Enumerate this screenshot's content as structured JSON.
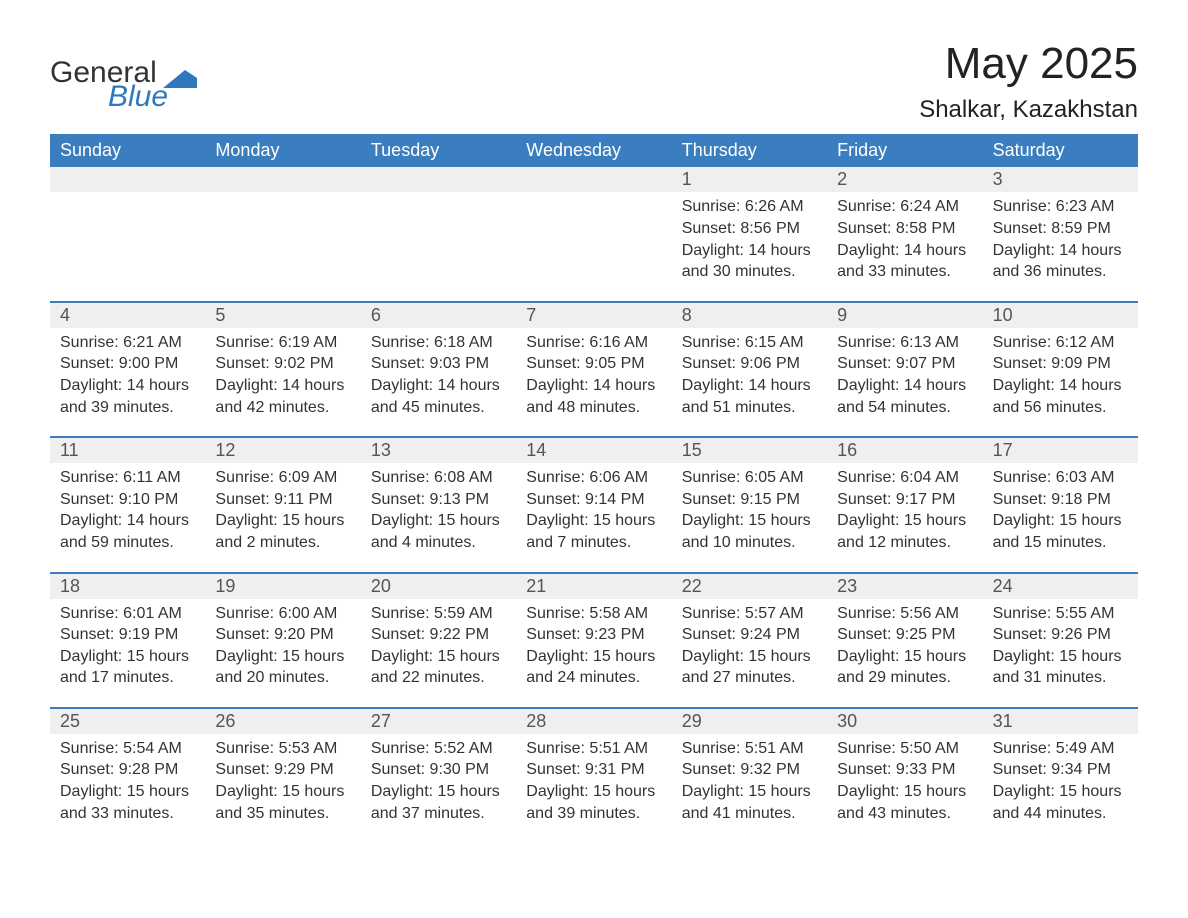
{
  "brand": {
    "name_part1": "General",
    "name_part2": "Blue",
    "text_color": "#333333",
    "accent_color": "#2f78bd"
  },
  "title": "May 2025",
  "location": "Shalkar, Kazakhstan",
  "colors": {
    "header_bg": "#3a7ebf",
    "header_text": "#ffffff",
    "daynum_bg": "#efefef",
    "daynum_text": "#555555",
    "divider": "#3a7ebf",
    "body_text": "#333333",
    "page_bg": "#ffffff"
  },
  "day_labels": [
    "Sunday",
    "Monday",
    "Tuesday",
    "Wednesday",
    "Thursday",
    "Friday",
    "Saturday"
  ],
  "weeks": [
    [
      null,
      null,
      null,
      null,
      {
        "n": "1",
        "sunrise": "6:26 AM",
        "sunset": "8:56 PM",
        "daylight": "14 hours and 30 minutes."
      },
      {
        "n": "2",
        "sunrise": "6:24 AM",
        "sunset": "8:58 PM",
        "daylight": "14 hours and 33 minutes."
      },
      {
        "n": "3",
        "sunrise": "6:23 AM",
        "sunset": "8:59 PM",
        "daylight": "14 hours and 36 minutes."
      }
    ],
    [
      {
        "n": "4",
        "sunrise": "6:21 AM",
        "sunset": "9:00 PM",
        "daylight": "14 hours and 39 minutes."
      },
      {
        "n": "5",
        "sunrise": "6:19 AM",
        "sunset": "9:02 PM",
        "daylight": "14 hours and 42 minutes."
      },
      {
        "n": "6",
        "sunrise": "6:18 AM",
        "sunset": "9:03 PM",
        "daylight": "14 hours and 45 minutes."
      },
      {
        "n": "7",
        "sunrise": "6:16 AM",
        "sunset": "9:05 PM",
        "daylight": "14 hours and 48 minutes."
      },
      {
        "n": "8",
        "sunrise": "6:15 AM",
        "sunset": "9:06 PM",
        "daylight": "14 hours and 51 minutes."
      },
      {
        "n": "9",
        "sunrise": "6:13 AM",
        "sunset": "9:07 PM",
        "daylight": "14 hours and 54 minutes."
      },
      {
        "n": "10",
        "sunrise": "6:12 AM",
        "sunset": "9:09 PM",
        "daylight": "14 hours and 56 minutes."
      }
    ],
    [
      {
        "n": "11",
        "sunrise": "6:11 AM",
        "sunset": "9:10 PM",
        "daylight": "14 hours and 59 minutes."
      },
      {
        "n": "12",
        "sunrise": "6:09 AM",
        "sunset": "9:11 PM",
        "daylight": "15 hours and 2 minutes."
      },
      {
        "n": "13",
        "sunrise": "6:08 AM",
        "sunset": "9:13 PM",
        "daylight": "15 hours and 4 minutes."
      },
      {
        "n": "14",
        "sunrise": "6:06 AM",
        "sunset": "9:14 PM",
        "daylight": "15 hours and 7 minutes."
      },
      {
        "n": "15",
        "sunrise": "6:05 AM",
        "sunset": "9:15 PM",
        "daylight": "15 hours and 10 minutes."
      },
      {
        "n": "16",
        "sunrise": "6:04 AM",
        "sunset": "9:17 PM",
        "daylight": "15 hours and 12 minutes."
      },
      {
        "n": "17",
        "sunrise": "6:03 AM",
        "sunset": "9:18 PM",
        "daylight": "15 hours and 15 minutes."
      }
    ],
    [
      {
        "n": "18",
        "sunrise": "6:01 AM",
        "sunset": "9:19 PM",
        "daylight": "15 hours and 17 minutes."
      },
      {
        "n": "19",
        "sunrise": "6:00 AM",
        "sunset": "9:20 PM",
        "daylight": "15 hours and 20 minutes."
      },
      {
        "n": "20",
        "sunrise": "5:59 AM",
        "sunset": "9:22 PM",
        "daylight": "15 hours and 22 minutes."
      },
      {
        "n": "21",
        "sunrise": "5:58 AM",
        "sunset": "9:23 PM",
        "daylight": "15 hours and 24 minutes."
      },
      {
        "n": "22",
        "sunrise": "5:57 AM",
        "sunset": "9:24 PM",
        "daylight": "15 hours and 27 minutes."
      },
      {
        "n": "23",
        "sunrise": "5:56 AM",
        "sunset": "9:25 PM",
        "daylight": "15 hours and 29 minutes."
      },
      {
        "n": "24",
        "sunrise": "5:55 AM",
        "sunset": "9:26 PM",
        "daylight": "15 hours and 31 minutes."
      }
    ],
    [
      {
        "n": "25",
        "sunrise": "5:54 AM",
        "sunset": "9:28 PM",
        "daylight": "15 hours and 33 minutes."
      },
      {
        "n": "26",
        "sunrise": "5:53 AM",
        "sunset": "9:29 PM",
        "daylight": "15 hours and 35 minutes."
      },
      {
        "n": "27",
        "sunrise": "5:52 AM",
        "sunset": "9:30 PM",
        "daylight": "15 hours and 37 minutes."
      },
      {
        "n": "28",
        "sunrise": "5:51 AM",
        "sunset": "9:31 PM",
        "daylight": "15 hours and 39 minutes."
      },
      {
        "n": "29",
        "sunrise": "5:51 AM",
        "sunset": "9:32 PM",
        "daylight": "15 hours and 41 minutes."
      },
      {
        "n": "30",
        "sunrise": "5:50 AM",
        "sunset": "9:33 PM",
        "daylight": "15 hours and 43 minutes."
      },
      {
        "n": "31",
        "sunrise": "5:49 AM",
        "sunset": "9:34 PM",
        "daylight": "15 hours and 44 minutes."
      }
    ]
  ],
  "labels": {
    "sunrise": "Sunrise:",
    "sunset": "Sunset:",
    "daylight": "Daylight:"
  }
}
